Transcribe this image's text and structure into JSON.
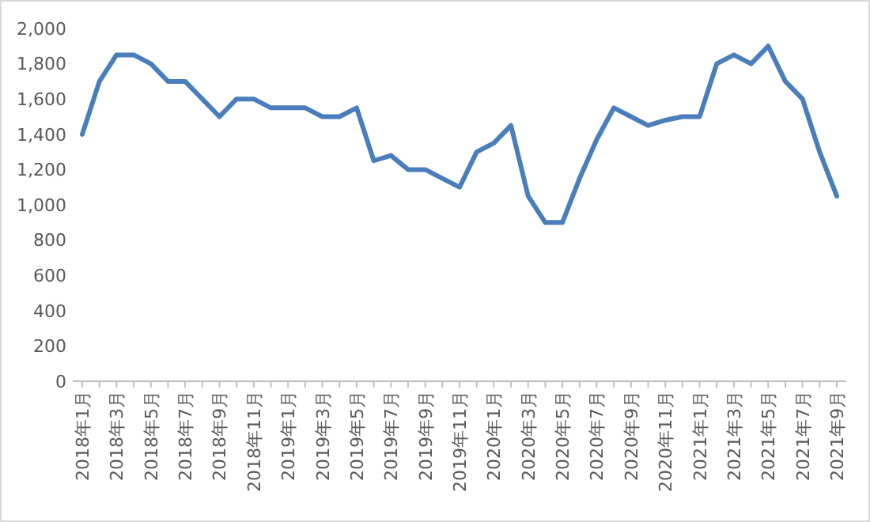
{
  "chart_data": {
    "type": "line",
    "categories": [
      "2018年1月",
      null,
      "2018年3月",
      null,
      "2018年5月",
      null,
      "2018年7月",
      null,
      "2018年9月",
      null,
      "2018年11月",
      null,
      "2019年1月",
      null,
      "2019年3月",
      null,
      "2019年5月",
      null,
      "2019年7月",
      null,
      "2019年9月",
      null,
      "2019年11月",
      null,
      "2020年1月",
      null,
      "2020年3月",
      null,
      "2020年5月",
      null,
      "2020年7月",
      null,
      "2020年9月",
      null,
      "2020年11月",
      null,
      "2021年1月",
      null,
      "2021年3月",
      null,
      "2021年5月",
      null,
      "2021年7月",
      null,
      "2021年9月"
    ],
    "series": [
      {
        "color": "#4a7ebb",
        "values": [
          1400,
          1700,
          1850,
          1850,
          1800,
          1700,
          1700,
          1600,
          1500,
          1600,
          1600,
          1550,
          1550,
          1550,
          1500,
          1500,
          1550,
          1250,
          1280,
          1200,
          1200,
          1150,
          1100,
          1300,
          1350,
          1450,
          1050,
          900,
          900,
          1150,
          1370,
          1550,
          1500,
          1450,
          1480,
          1500,
          1500,
          1800,
          1850,
          1800,
          1900,
          1700,
          1600,
          1300,
          1050
        ]
      }
    ],
    "ylim": [
      0,
      2000
    ],
    "yticks": [
      {
        "value": 0,
        "label": "0"
      },
      {
        "value": 200,
        "label": "200"
      },
      {
        "value": 400,
        "label": "400"
      },
      {
        "value": 600,
        "label": "600"
      },
      {
        "value": 800,
        "label": "800"
      },
      {
        "value": 1000,
        "label": "1,000"
      },
      {
        "value": 1200,
        "label": "1,200"
      },
      {
        "value": 1400,
        "label": "1,400"
      },
      {
        "value": 1600,
        "label": "1,600"
      },
      {
        "value": 1800,
        "label": "1,800"
      },
      {
        "value": 2000,
        "label": "2,000"
      }
    ],
    "grid": false,
    "marker": "none",
    "line_style": "solid"
  }
}
